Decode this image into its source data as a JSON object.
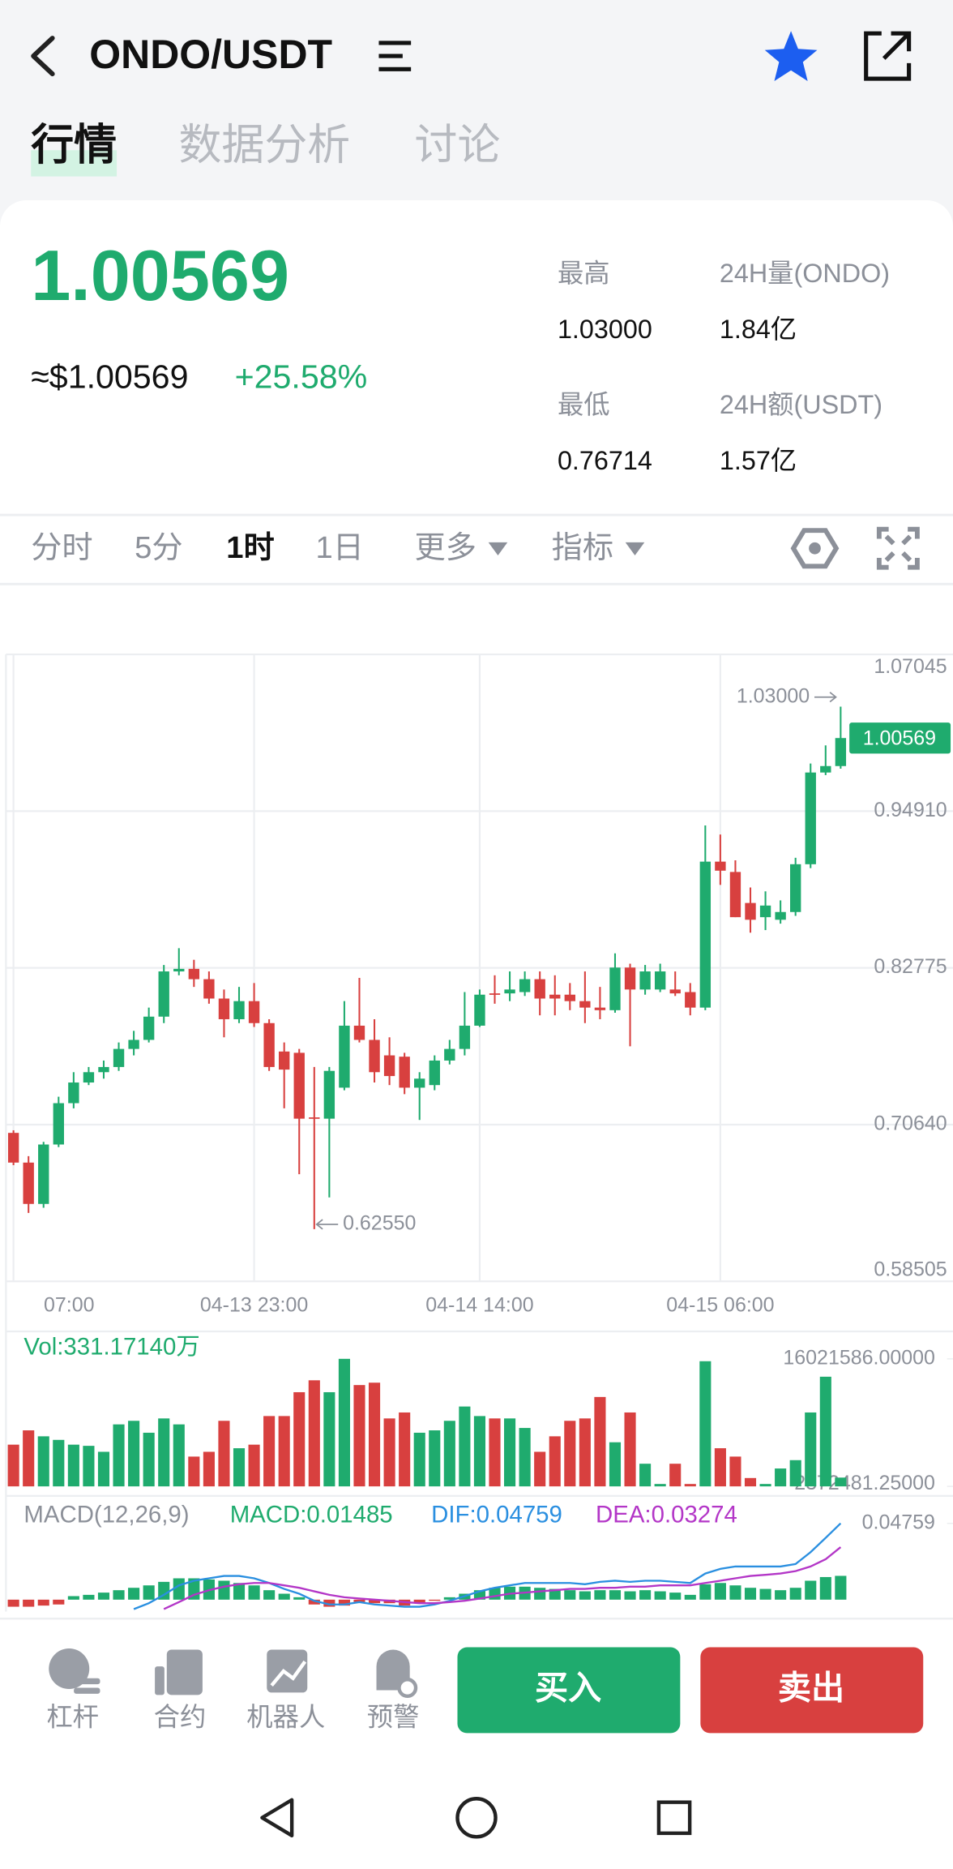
{
  "header": {
    "title": "ONDO/USDT"
  },
  "tabs": [
    "行情",
    "数据分析",
    "讨论"
  ],
  "ticker": {
    "price": "1.00569",
    "fiat": "≈$1.00569",
    "change": "+25.58%"
  },
  "stats": [
    {
      "label": "最高",
      "value": "1.03000"
    },
    {
      "label": "24H量(ONDO)",
      "value": "1.84亿"
    },
    {
      "label": "最低",
      "value": "0.76714"
    },
    {
      "label": "24H额(USDT)",
      "value": "1.57亿"
    }
  ],
  "intervals": [
    "分时",
    "5分",
    "1时",
    "1日",
    "更多",
    "指标"
  ],
  "chart_data": [
    {
      "type": "candlestick",
      "up_color": "#1fab6e",
      "down_color": "#d8403f",
      "grid": true,
      "categories": [
        "07:00",
        null,
        null,
        null,
        null,
        null,
        null,
        null,
        null,
        null,
        null,
        null,
        null,
        null,
        null,
        null,
        "04-13 23:00",
        null,
        null,
        null,
        null,
        null,
        null,
        null,
        null,
        null,
        null,
        null,
        null,
        null,
        null,
        "04-14 14:00",
        null,
        null,
        null,
        null,
        null,
        null,
        null,
        null,
        null,
        null,
        null,
        null,
        null,
        null,
        null,
        "04-15 06:00",
        null,
        null,
        null,
        null,
        null,
        null,
        null,
        null
      ],
      "open": [
        0.7,
        0.677,
        0.645,
        0.691,
        0.723,
        0.739,
        0.747,
        0.751,
        0.765,
        0.772,
        0.79,
        0.825,
        0.827,
        0.819,
        0.804,
        0.788,
        0.802,
        0.785,
        0.763,
        0.762,
        0.712,
        0.711,
        0.735,
        0.783,
        0.772,
        0.76,
        0.759,
        0.735,
        0.737,
        0.756,
        0.765,
        0.783,
        0.808,
        0.808,
        0.809,
        0.819,
        0.807,
        0.807,
        0.802,
        0.797,
        0.795,
        0.828,
        0.811,
        0.811,
        0.811,
        0.809,
        0.797,
        0.91,
        0.902,
        0.878,
        0.867,
        0.865,
        0.871,
        0.908,
        0.979,
        0.984
      ],
      "high": [
        0.702,
        0.682,
        0.693,
        0.728,
        0.747,
        0.751,
        0.756,
        0.77,
        0.779,
        0.797,
        0.83,
        0.843,
        0.834,
        0.825,
        0.811,
        0.813,
        0.816,
        0.788,
        0.77,
        0.765,
        0.751,
        0.751,
        0.802,
        0.82,
        0.788,
        0.774,
        0.762,
        0.747,
        0.76,
        0.772,
        0.809,
        0.811,
        0.822,
        0.825,
        0.825,
        0.825,
        0.822,
        0.816,
        0.825,
        0.813,
        0.839,
        0.831,
        0.83,
        0.831,
        0.825,
        0.816,
        0.938,
        0.931,
        0.911,
        0.89,
        0.887,
        0.88,
        0.913,
        0.986,
        1.0,
        1.03
      ],
      "low": [
        0.675,
        0.638,
        0.642,
        0.689,
        0.719,
        0.737,
        0.742,
        0.748,
        0.76,
        0.77,
        0.785,
        0.822,
        0.813,
        0.8,
        0.774,
        0.785,
        0.782,
        0.748,
        0.719,
        0.668,
        0.6255,
        0.65,
        0.733,
        0.77,
        0.739,
        0.737,
        0.73,
        0.71,
        0.733,
        0.753,
        0.76,
        0.782,
        0.8,
        0.802,
        0.806,
        0.791,
        0.791,
        0.795,
        0.785,
        0.788,
        0.793,
        0.767,
        0.807,
        0.809,
        0.806,
        0.791,
        0.795,
        0.892,
        0.867,
        0.855,
        0.857,
        0.862,
        0.868,
        0.905,
        0.977,
        0.982
      ],
      "close": [
        0.677,
        0.645,
        0.691,
        0.723,
        0.739,
        0.747,
        0.751,
        0.765,
        0.772,
        0.79,
        0.825,
        0.827,
        0.819,
        0.804,
        0.788,
        0.802,
        0.785,
        0.751,
        0.749,
        0.711,
        0.711,
        0.748,
        0.783,
        0.772,
        0.747,
        0.744,
        0.735,
        0.742,
        0.756,
        0.765,
        0.783,
        0.807,
        0.807,
        0.811,
        0.819,
        0.804,
        0.804,
        0.802,
        0.797,
        0.795,
        0.828,
        0.811,
        0.825,
        0.825,
        0.808,
        0.797,
        0.91,
        0.903,
        0.867,
        0.865,
        0.876,
        0.871,
        0.908,
        0.979,
        0.984,
        1.00569
      ],
      "ylim": [
        0.58505,
        1.07045
      ],
      "yticks": [
        1.07045,
        {
          "value": 0.9491,
          "label": "0.94910"
        },
        0.82775,
        {
          "value": 0.7064,
          "label": "0.70640"
        },
        0.58505
      ],
      "last_price": 1.00569,
      "max_label": {
        "value": 1.03,
        "label": "1.03000"
      },
      "min_label": {
        "value": 0.6255,
        "label": "0.62550"
      }
    },
    {
      "type": "volume",
      "title": "Vol:331.17140万",
      "values": [
        6837000,
        8368000,
        7730000,
        7347000,
        6837000,
        6710000,
        6072000,
        9006000,
        9388000,
        8113000,
        9643000,
        9006000,
        5561000,
        6072000,
        9388000,
        6454000,
        6837000,
        9898000,
        9898000,
        12450000,
        13725000,
        12450000,
        16021586,
        13215000,
        13470000,
        9643000,
        10281000,
        8113000,
        8368000,
        9388000,
        10919000,
        9898000,
        9643000,
        9643000,
        8623000,
        6072000,
        7730000,
        9388000,
        9643000,
        11940000,
        7092000,
        10281000,
        4796000,
        2628000,
        4796000,
        2628000,
        15766000,
        6454000,
        5561000,
        3265000,
        2628000,
        4286000,
        5179000,
        10281000,
        14108000,
        3311714
      ],
      "ylim": [
        2372481.25,
        16021586
      ],
      "yticks": [
        {
          "value": 16021586,
          "label": "16021586.00000"
        },
        {
          "value": 2372481.25,
          "label": "2372481.25000"
        }
      ]
    },
    {
      "type": "macd",
      "title": "MACD(12,26,9)",
      "macd_label": "MACD:0.01485",
      "dif_label": "DIF:0.04759",
      "dea_label": "DEA:0.03274",
      "up_color": "#1fab6e",
      "down_color": "#d8403f",
      "dif_color": "#2a8fe0",
      "dea_color": "#b336c7",
      "histogram": [
        -0.0044,
        -0.0044,
        -0.0037,
        -0.003,
        0.0022,
        0.003,
        0.0044,
        0.0059,
        0.0074,
        0.0089,
        0.0111,
        0.0133,
        0.0133,
        0.0126,
        0.0118,
        0.0104,
        0.0089,
        0.0059,
        0.0037,
        0.0015,
        -0.003,
        -0.0044,
        -0.0037,
        -0.0015,
        -0.0022,
        -0.0022,
        -0.0037,
        -0.0022,
        -0.0007,
        0.0015,
        0.0037,
        0.0059,
        0.0074,
        0.0081,
        0.0081,
        0.0074,
        0.0067,
        0.0059,
        0.0052,
        0.0059,
        0.0059,
        0.0052,
        0.0059,
        0.0052,
        0.0044,
        0.003,
        0.0096,
        0.0104,
        0.0089,
        0.0074,
        0.0067,
        0.0059,
        0.0074,
        0.0118,
        0.0141,
        0.01485
      ],
      "dif": [
        null,
        null,
        null,
        null,
        null,
        null,
        null,
        null,
        -0.0059,
        -0.0022,
        0.003,
        0.0089,
        0.0118,
        0.0133,
        0.0148,
        0.0148,
        0.0133,
        0.0104,
        0.0067,
        0.0037,
        -0.0007,
        -0.003,
        -0.003,
        -0.0015,
        -0.003,
        -0.0037,
        -0.0044,
        -0.0044,
        -0.003,
        -0.0007,
        0.0022,
        0.0052,
        0.0074,
        0.0089,
        0.0104,
        0.0104,
        0.0104,
        0.0104,
        0.0096,
        0.0111,
        0.0118,
        0.0111,
        0.0118,
        0.0118,
        0.0111,
        0.0104,
        0.0163,
        0.0192,
        0.0207,
        0.0207,
        0.0207,
        0.0207,
        0.0222,
        0.0296,
        0.0385,
        0.04759
      ],
      "dea": [
        null,
        null,
        null,
        null,
        null,
        null,
        null,
        null,
        null,
        null,
        -0.0059,
        -0.0015,
        0.003,
        0.0059,
        0.0081,
        0.0096,
        0.0104,
        0.0104,
        0.0089,
        0.0074,
        0.0052,
        0.003,
        0.0015,
        0.0007,
        0,
        -0.0007,
        -0.0015,
        -0.0022,
        -0.0022,
        -0.0015,
        -0.0007,
        0.0007,
        0.0022,
        0.0037,
        0.0044,
        0.0052,
        0.0059,
        0.0067,
        0.0067,
        0.0074,
        0.0074,
        0.0081,
        0.0081,
        0.0089,
        0.0089,
        0.0089,
        0.0104,
        0.0118,
        0.0133,
        0.0148,
        0.0155,
        0.0163,
        0.0178,
        0.0207,
        0.0252,
        0.03274
      ],
      "ylim": [
        -0.0074,
        0.0595
      ],
      "yticks": [
        0.04759
      ]
    }
  ],
  "tools": [
    "杠杆",
    "合约",
    "机器人",
    "预警"
  ],
  "actions": {
    "buy": "买入",
    "sell": "卖出"
  }
}
